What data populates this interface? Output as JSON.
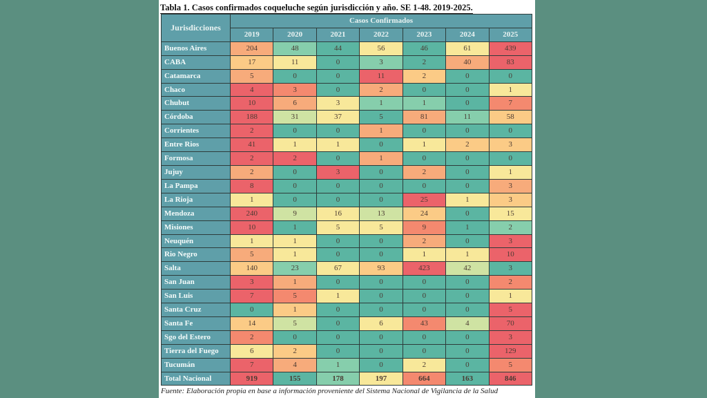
{
  "title": "Tabla 1. Casos confirmados coqueluche según jurisdicción y año. SE 1-48. 2019-2025.",
  "header": {
    "jurisdiction_label": "Jurisdicciones",
    "group_label": "Casos Confirmados",
    "years": [
      "2019",
      "2020",
      "2021",
      "2022",
      "2023",
      "2024",
      "2025"
    ]
  },
  "palette": {
    "R": "#eb636a",
    "OR": "#f4896f",
    "O": "#f7ab7b",
    "LO": "#fbcb86",
    "Y": "#f8e89a",
    "LG": "#cfe3a3",
    "LT": "#86ceac",
    "T": "#5bb5a2"
  },
  "rows": [
    {
      "name": "Buenos Aires",
      "values": [
        "204",
        "48",
        "44",
        "56",
        "46",
        "61",
        "439"
      ],
      "colors": [
        "O",
        "LT",
        "T",
        "Y",
        "T",
        "Y",
        "R"
      ]
    },
    {
      "name": "CABA",
      "values": [
        "17",
        "11",
        "0",
        "3",
        "2",
        "40",
        "83"
      ],
      "colors": [
        "LO",
        "Y",
        "T",
        "LT",
        "T",
        "O",
        "R"
      ]
    },
    {
      "name": "Catamarca",
      "values": [
        "5",
        "0",
        "0",
        "11",
        "2",
        "0",
        "0"
      ],
      "colors": [
        "O",
        "T",
        "T",
        "R",
        "LO",
        "T",
        "T"
      ]
    },
    {
      "name": "Chaco",
      "values": [
        "4",
        "3",
        "0",
        "2",
        "0",
        "0",
        "1"
      ],
      "colors": [
        "R",
        "OR",
        "T",
        "O",
        "T",
        "T",
        "Y"
      ]
    },
    {
      "name": "Chubut",
      "values": [
        "10",
        "6",
        "3",
        "1",
        "1",
        "0",
        "7"
      ],
      "colors": [
        "R",
        "O",
        "Y",
        "LT",
        "LT",
        "T",
        "OR"
      ]
    },
    {
      "name": "Córdoba",
      "values": [
        "188",
        "31",
        "37",
        "5",
        "81",
        "11",
        "58"
      ],
      "colors": [
        "R",
        "LG",
        "Y",
        "T",
        "O",
        "LT",
        "LO"
      ]
    },
    {
      "name": "Corrientes",
      "values": [
        "2",
        "0",
        "0",
        "1",
        "0",
        "0",
        "0"
      ],
      "colors": [
        "R",
        "T",
        "T",
        "O",
        "T",
        "T",
        "T"
      ]
    },
    {
      "name": "Entre Rios",
      "values": [
        "41",
        "1",
        "1",
        "0",
        "1",
        "2",
        "3"
      ],
      "colors": [
        "R",
        "Y",
        "Y",
        "T",
        "Y",
        "LO",
        "LO"
      ]
    },
    {
      "name": "Formosa",
      "values": [
        "2",
        "2",
        "0",
        "1",
        "0",
        "0",
        "0"
      ],
      "colors": [
        "R",
        "R",
        "T",
        "O",
        "T",
        "T",
        "T"
      ]
    },
    {
      "name": "Jujuy",
      "values": [
        "2",
        "0",
        "3",
        "0",
        "2",
        "0",
        "1"
      ],
      "colors": [
        "O",
        "T",
        "R",
        "T",
        "O",
        "T",
        "Y"
      ]
    },
    {
      "name": "La Pampa",
      "values": [
        "8",
        "0",
        "0",
        "0",
        "0",
        "0",
        "3"
      ],
      "colors": [
        "R",
        "T",
        "T",
        "T",
        "T",
        "T",
        "O"
      ]
    },
    {
      "name": "La Rioja",
      "values": [
        "1",
        "0",
        "0",
        "0",
        "25",
        "1",
        "3"
      ],
      "colors": [
        "Y",
        "T",
        "T",
        "T",
        "R",
        "Y",
        "LO"
      ]
    },
    {
      "name": "Mendoza",
      "values": [
        "240",
        "9",
        "16",
        "13",
        "24",
        "0",
        "15"
      ],
      "colors": [
        "R",
        "LG",
        "Y",
        "LG",
        "LO",
        "T",
        "Y"
      ]
    },
    {
      "name": "Misiones",
      "values": [
        "10",
        "1",
        "5",
        "5",
        "9",
        "1",
        "2"
      ],
      "colors": [
        "R",
        "T",
        "Y",
        "Y",
        "OR",
        "T",
        "LT"
      ]
    },
    {
      "name": "Neuquén",
      "values": [
        "1",
        "1",
        "0",
        "0",
        "2",
        "0",
        "3"
      ],
      "colors": [
        "Y",
        "Y",
        "T",
        "T",
        "O",
        "T",
        "R"
      ]
    },
    {
      "name": "Rio Negro",
      "values": [
        "5",
        "1",
        "0",
        "0",
        "1",
        "1",
        "10"
      ],
      "colors": [
        "O",
        "Y",
        "T",
        "T",
        "Y",
        "Y",
        "R"
      ]
    },
    {
      "name": "Salta",
      "values": [
        "140",
        "23",
        "67",
        "93",
        "423",
        "42",
        "3"
      ],
      "colors": [
        "LO",
        "LT",
        "Y",
        "LO",
        "R",
        "LG",
        "T"
      ]
    },
    {
      "name": "San Juan",
      "values": [
        "3",
        "1",
        "0",
        "0",
        "0",
        "0",
        "2"
      ],
      "colors": [
        "R",
        "O",
        "T",
        "T",
        "T",
        "T",
        "OR"
      ]
    },
    {
      "name": "San Luis",
      "values": [
        "7",
        "5",
        "1",
        "0",
        "0",
        "0",
        "1"
      ],
      "colors": [
        "R",
        "OR",
        "Y",
        "T",
        "T",
        "T",
        "Y"
      ]
    },
    {
      "name": "Santa Cruz",
      "values": [
        "0",
        "1",
        "0",
        "0",
        "0",
        "0",
        "5"
      ],
      "colors": [
        "T",
        "LO",
        "T",
        "T",
        "T",
        "T",
        "R"
      ]
    },
    {
      "name": "Santa Fe",
      "values": [
        "14",
        "5",
        "0",
        "6",
        "43",
        "4",
        "70"
      ],
      "colors": [
        "LO",
        "LG",
        "T",
        "Y",
        "OR",
        "LG",
        "R"
      ]
    },
    {
      "name": "Sgo del Estero",
      "values": [
        "2",
        "0",
        "0",
        "0",
        "0",
        "0",
        "3"
      ],
      "colors": [
        "OR",
        "T",
        "T",
        "T",
        "T",
        "T",
        "R"
      ]
    },
    {
      "name": "Tierra del Fuego",
      "values": [
        "6",
        "2",
        "0",
        "0",
        "0",
        "0",
        "129"
      ],
      "colors": [
        "Y",
        "LO",
        "T",
        "T",
        "T",
        "T",
        "R"
      ]
    },
    {
      "name": "Tucumán",
      "values": [
        "7",
        "4",
        "1",
        "0",
        "2",
        "0",
        "5"
      ],
      "colors": [
        "R",
        "O",
        "LT",
        "T",
        "Y",
        "T",
        "OR"
      ]
    }
  ],
  "total": {
    "name": "Total Nacional",
    "values": [
      "919",
      "155",
      "178",
      "197",
      "664",
      "163",
      "846"
    ],
    "colors": [
      "R",
      "T",
      "LT",
      "Y",
      "OR",
      "T",
      "R"
    ]
  },
  "footer": "Fuente: Elaboración propia en base a información proveniente del Sistema Nacional de Vigilancia de la Salud"
}
